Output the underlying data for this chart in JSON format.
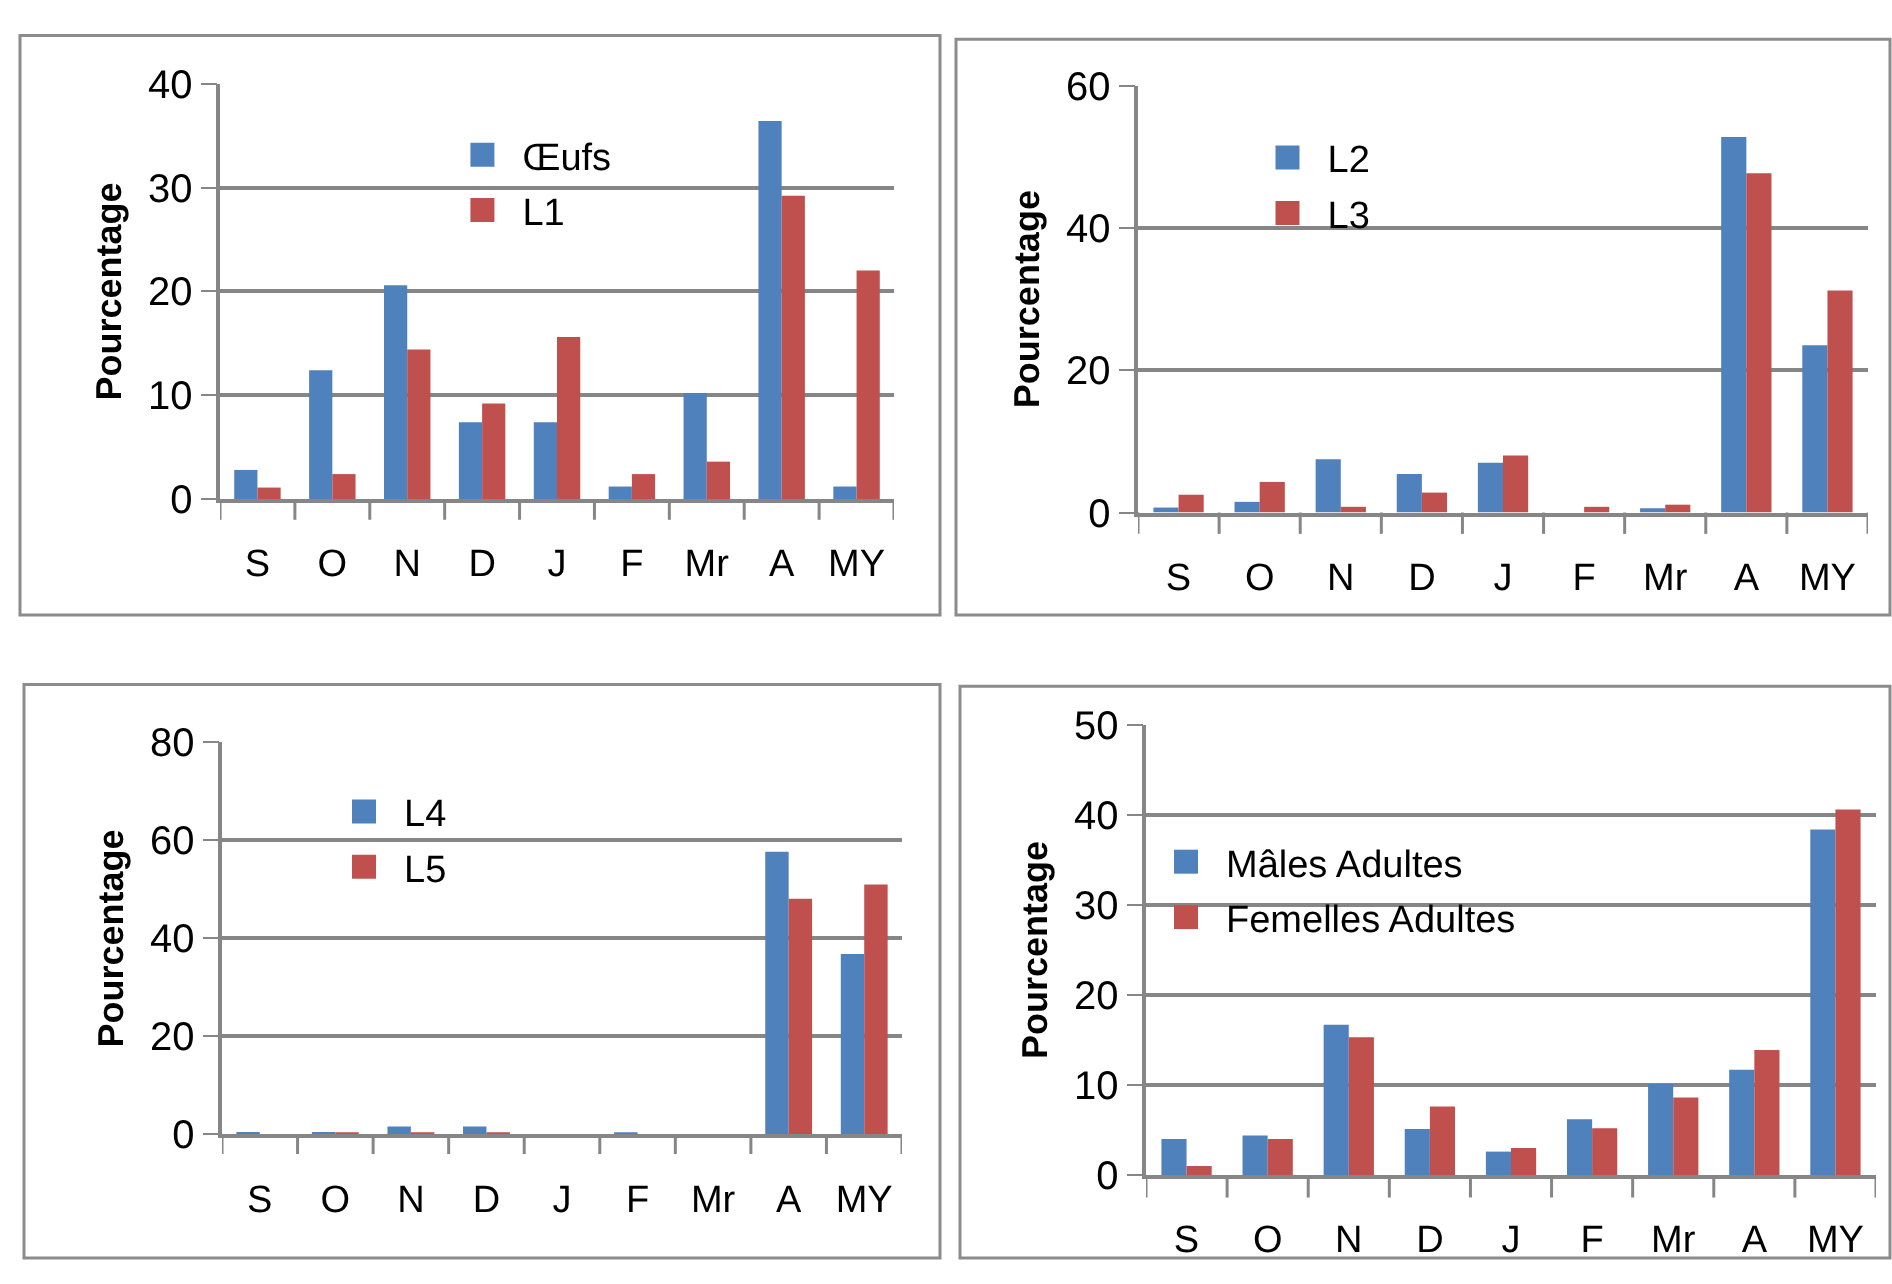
{
  "chart_data": [
    {
      "type": "bar",
      "categories": [
        "S",
        "O",
        "N",
        "D",
        "J",
        "F",
        "Mr",
        "A",
        "MY"
      ],
      "ylabel": "Pourcentage",
      "ylim": [
        0,
        40
      ],
      "yticks": [
        0,
        10,
        20,
        30,
        40
      ],
      "grid": "y",
      "legend": "top",
      "series": [
        {
          "name": "Œufs",
          "color": "#4f81bd",
          "values": [
            2.8,
            12.4,
            20.6,
            7.4,
            7.4,
            1.2,
            10.2,
            36.4,
            1.2
          ]
        },
        {
          "name": "L1",
          "color": "#c0504d",
          "values": [
            1.1,
            2.4,
            14.4,
            9.2,
            15.6,
            2.4,
            3.6,
            29.2,
            22.0
          ]
        }
      ]
    },
    {
      "type": "bar",
      "categories": [
        "S",
        "O",
        "N",
        "D",
        "J",
        "F",
        "Mr",
        "A",
        "MY"
      ],
      "ylabel": "Pourcentage",
      "ylim": [
        0,
        60
      ],
      "yticks": [
        0,
        20,
        40,
        60
      ],
      "grid": "y",
      "legend": "top left",
      "series": [
        {
          "name": "L2",
          "color": "#4f81bd",
          "values": [
            0.7,
            1.5,
            7.5,
            5.4,
            7.0,
            0,
            0.6,
            52.8,
            23.5
          ]
        },
        {
          "name": "L3",
          "color": "#c0504d",
          "values": [
            2.5,
            4.3,
            0.8,
            2.8,
            8.0,
            0.8,
            1.1,
            47.7,
            31.2
          ]
        }
      ]
    },
    {
      "type": "bar",
      "categories": [
        "S",
        "O",
        "N",
        "D",
        "J",
        "F",
        "Mr",
        "A",
        "MY"
      ],
      "ylabel": "Pourcentage",
      "ylim": [
        0,
        80
      ],
      "yticks": [
        0,
        20,
        40,
        60,
        80
      ],
      "grid": "y",
      "legend": "top left",
      "series": [
        {
          "name": "L4",
          "color": "#4f81bd",
          "values": [
            0.5,
            0.5,
            1.6,
            1.6,
            0,
            0.2,
            0,
            57.7,
            36.8
          ]
        },
        {
          "name": "L5",
          "color": "#c0504d",
          "values": [
            0,
            0.2,
            0.4,
            0.2,
            0,
            0,
            0,
            48.1,
            51.0
          ]
        }
      ]
    },
    {
      "type": "bar",
      "categories": [
        "S",
        "O",
        "N",
        "D",
        "J",
        "F",
        "Mr",
        "A",
        "MY"
      ],
      "ylabel": "Pourcentage",
      "ylim": [
        0,
        50
      ],
      "yticks": [
        0,
        10,
        20,
        30,
        40,
        50
      ],
      "grid": "y",
      "legend": "left",
      "series": [
        {
          "name": "Mâles Adultes",
          "color": "#4f81bd",
          "values": [
            4.0,
            4.4,
            16.7,
            5.1,
            2.6,
            6.2,
            10.1,
            11.7,
            38.4
          ]
        },
        {
          "name": "Femelles Adultes",
          "color": "#c0504d",
          "values": [
            1.0,
            4.0,
            15.3,
            7.6,
            3.0,
            5.2,
            8.6,
            13.9,
            40.6
          ]
        }
      ]
    }
  ]
}
